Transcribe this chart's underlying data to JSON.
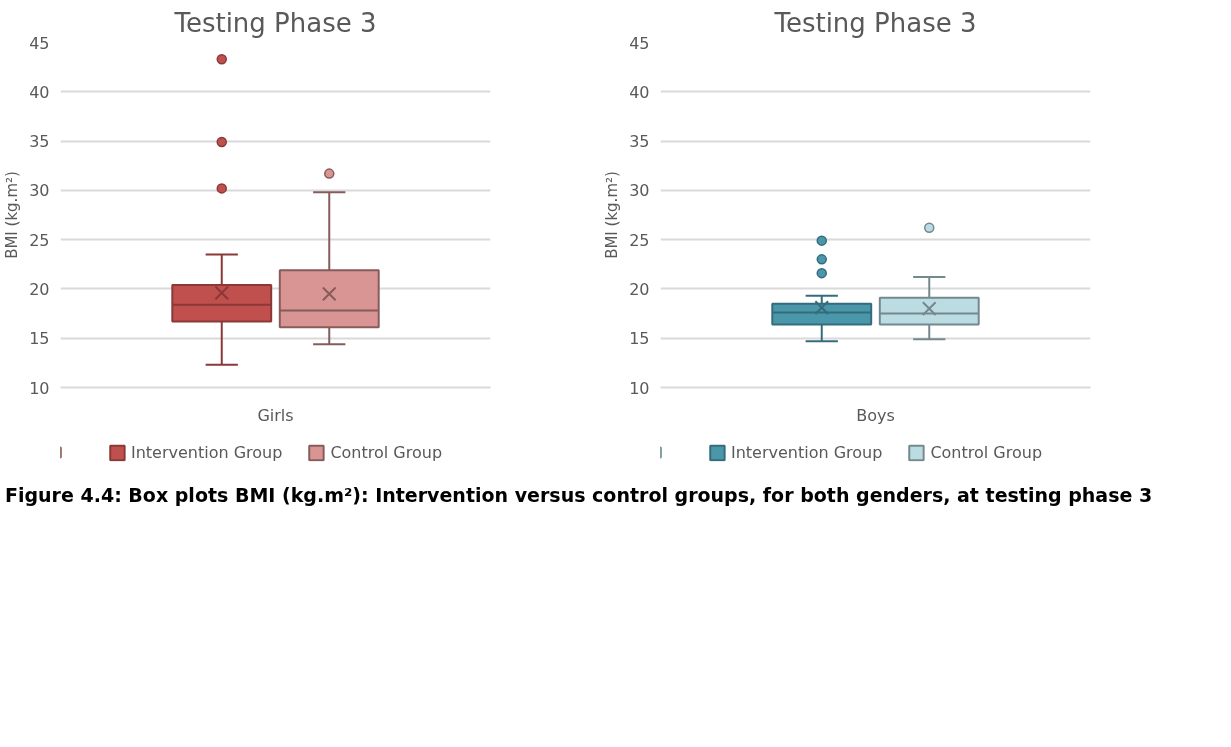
{
  "chart_data": [
    {
      "type": "box",
      "title": "Testing Phase 3",
      "ylabel": "BMI (kg.m²)",
      "categories": [
        "Girls"
      ],
      "ylim": [
        10,
        45
      ],
      "yticks": [
        10,
        15,
        20,
        25,
        30,
        35,
        40,
        45
      ],
      "grid": "y",
      "legend": "bottom",
      "series": [
        {
          "name": "Intervention Group",
          "color": "#c0504d",
          "boxes": [
            {
              "low": 12.3,
              "q1": 16.7,
              "median": 18.4,
              "q3": 20.4,
              "high": 23.5,
              "mean": 19.6,
              "outliers": [
                30.2,
                34.9,
                43.3
              ]
            }
          ]
        },
        {
          "name": "Control Group",
          "color": "#d99594",
          "boxes": [
            {
              "low": 14.4,
              "q1": 16.1,
              "median": 17.8,
              "q3": 21.9,
              "high": 29.8,
              "mean": 19.5,
              "outliers": [
                31.7
              ]
            }
          ]
        }
      ]
    },
    {
      "type": "box",
      "title": "Testing Phase 3",
      "ylabel": "BMI (kg.m²)",
      "categories": [
        "Boys"
      ],
      "ylim": [
        10,
        45
      ],
      "yticks": [
        10,
        15,
        20,
        25,
        30,
        35,
        40,
        45
      ],
      "grid": "y",
      "legend": "bottom",
      "annotations": [
        "Figure 4.4: Box plots BMI (kg.m²): Intervention versus control groups, for both genders, at testing phase 3"
      ],
      "series": [
        {
          "name": "Intervention Group",
          "color": "#4a96ab",
          "boxes": [
            {
              "low": 14.7,
              "q1": 16.4,
              "median": 17.6,
              "q3": 18.5,
              "high": 19.3,
              "mean": 18.1,
              "outliers": [
                21.6,
                23.0,
                24.9
              ]
            }
          ]
        },
        {
          "name": "Control Group",
          "color": "#bcdce4",
          "boxes": [
            {
              "low": 14.9,
              "q1": 16.4,
              "median": 17.5,
              "q3": 19.1,
              "high": 21.2,
              "mean": 18.0,
              "outliers": [
                26.2
              ]
            }
          ]
        }
      ]
    }
  ]
}
